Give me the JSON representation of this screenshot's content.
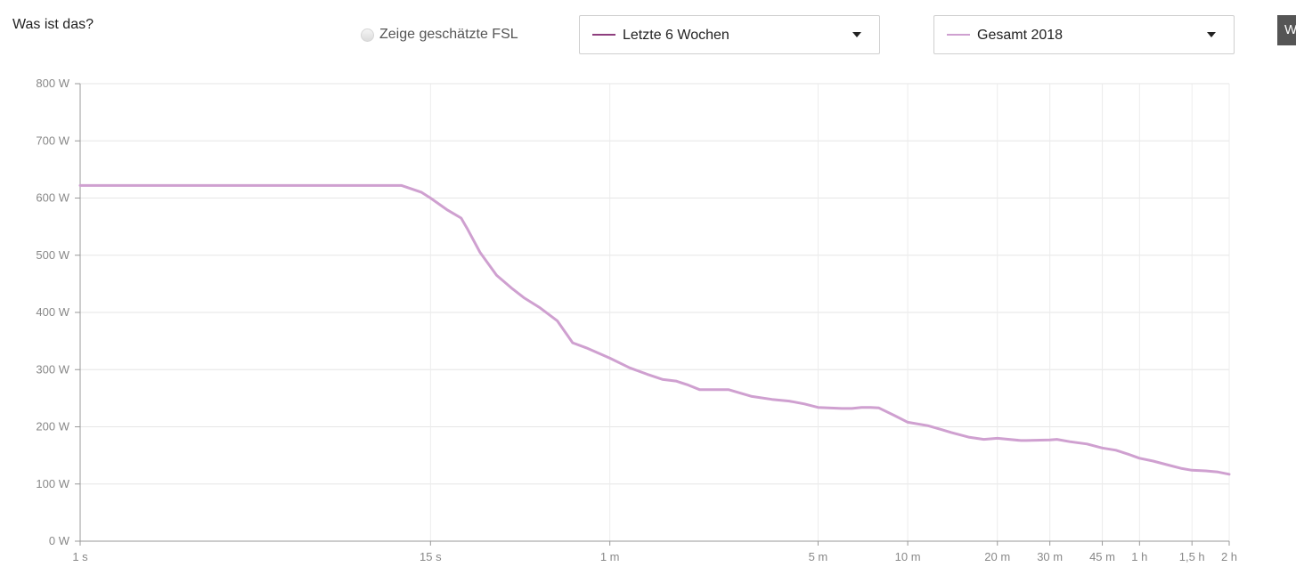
{
  "header": {
    "help_label": "Was ist das?",
    "fsl_toggle_label": "Zeige geschätzte FSL",
    "edge_button_label": "W"
  },
  "selectors": [
    {
      "label": "Letzte 6 Wochen",
      "color": "#8e3e7e"
    },
    {
      "label": "Gesamt 2018",
      "color": "#cfa0d0"
    }
  ],
  "chart_data": {
    "type": "line",
    "title": "",
    "xlabel": "",
    "ylabel": "",
    "x_scale": "log",
    "grid": true,
    "ylim": [
      0,
      800
    ],
    "y_ticks": [
      {
        "value": 0,
        "label": "0 W"
      },
      {
        "value": 100,
        "label": "100 W"
      },
      {
        "value": 200,
        "label": "200 W"
      },
      {
        "value": 300,
        "label": "300 W"
      },
      {
        "value": 400,
        "label": "400 W"
      },
      {
        "value": 500,
        "label": "500 W"
      },
      {
        "value": 600,
        "label": "600 W"
      },
      {
        "value": 700,
        "label": "700 W"
      },
      {
        "value": 800,
        "label": "800 W"
      }
    ],
    "x_ticks": [
      {
        "seconds": 1,
        "label": "1 s"
      },
      {
        "seconds": 15,
        "label": "15 s"
      },
      {
        "seconds": 60,
        "label": "1 m"
      },
      {
        "seconds": 300,
        "label": "5 m"
      },
      {
        "seconds": 600,
        "label": "10 m"
      },
      {
        "seconds": 1200,
        "label": "20 m"
      },
      {
        "seconds": 1800,
        "label": "30 m"
      },
      {
        "seconds": 2700,
        "label": "45 m"
      },
      {
        "seconds": 3600,
        "label": "1 h"
      },
      {
        "seconds": 5400,
        "label": "1,5 h"
      },
      {
        "seconds": 7200,
        "label": "2 h"
      }
    ],
    "series": [
      {
        "name": "Gesamt 2018",
        "color": "#cfa0d0",
        "x": [
          1,
          2,
          3,
          4,
          5,
          6,
          7,
          8,
          9,
          10,
          12,
          14,
          15,
          17,
          19,
          20,
          22,
          25,
          28,
          31,
          35,
          40,
          45,
          50,
          60,
          70,
          80,
          90,
          100,
          110,
          120,
          150,
          180,
          210,
          240,
          270,
          300,
          360,
          390,
          420,
          450,
          480,
          540,
          600,
          700,
          780,
          840,
          960,
          1080,
          1200,
          1440,
          1500,
          1800,
          1900,
          2100,
          2400,
          2700,
          3000,
          3300,
          3600,
          4000,
          4500,
          5000,
          5400,
          6000,
          6600,
          7200
        ],
        "values": [
          622,
          622,
          622,
          622,
          622,
          622,
          622,
          622,
          622,
          622,
          622,
          610,
          600,
          580,
          565,
          545,
          505,
          465,
          443,
          425,
          408,
          385,
          347,
          338,
          320,
          303,
          292,
          283,
          280,
          273,
          265,
          265,
          253,
          248,
          245,
          240,
          234,
          232,
          232,
          234,
          234,
          233,
          220,
          208,
          202,
          195,
          190,
          182,
          178,
          180,
          176,
          176,
          177,
          178,
          174,
          170,
          163,
          159,
          152,
          145,
          140,
          133,
          127,
          124,
          123,
          121,
          117
        ]
      }
    ]
  }
}
